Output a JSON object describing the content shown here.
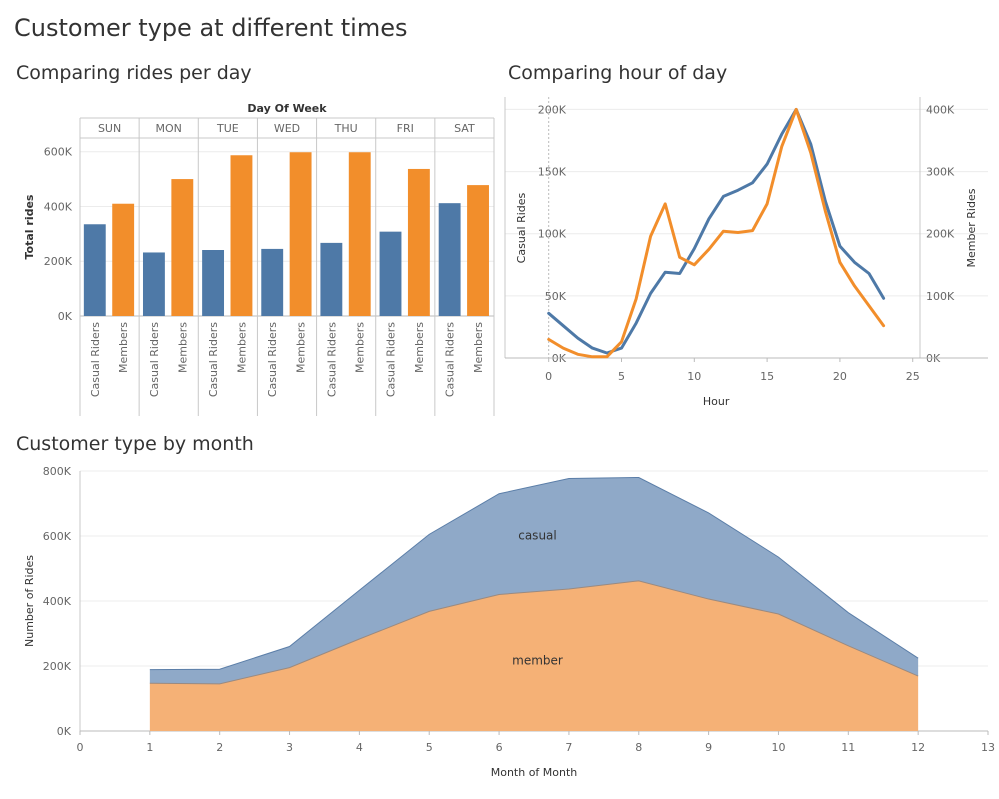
{
  "dashboard": {
    "title": "Customer type at different times"
  },
  "colors": {
    "casual": "#4e79a7",
    "member": "#f28e2b",
    "casual_area": "#8fa9c8",
    "member_area": "#f5b176",
    "grid": "#ececec",
    "axis": "#c8c8c8"
  },
  "chart_data": [
    {
      "id": "rides-per-day",
      "type": "bar",
      "title": "Comparing rides per day",
      "header_label": "Day Of Week",
      "ylabel": "Total rides",
      "ylim": [
        0,
        650000
      ],
      "yticks": [
        0,
        200000,
        400000,
        600000
      ],
      "ytick_labels": [
        "0K",
        "200K",
        "400K",
        "600K"
      ],
      "categories": [
        "SUN",
        "MON",
        "TUE",
        "WED",
        "THU",
        "FRI",
        "SAT"
      ],
      "sub_categories": [
        "Casual Riders",
        "Members"
      ],
      "series": [
        {
          "name": "Casual Riders",
          "values": [
            335000,
            232000,
            241000,
            245000,
            267000,
            308000,
            412000
          ]
        },
        {
          "name": "Members",
          "values": [
            410000,
            500000,
            587000,
            598000,
            598000,
            537000,
            478000
          ]
        }
      ]
    },
    {
      "id": "hour-of-day",
      "type": "line",
      "title": "Comparing hour of day",
      "xlabel": "Hour",
      "ylabel_left": "Casual Rides",
      "ylabel_right": "Member Rides",
      "xlim": [
        -3,
        25.5
      ],
      "xticks": [
        0,
        5,
        10,
        15,
        20,
        25
      ],
      "ylim_left": [
        0,
        210000
      ],
      "yticks_left": [
        0,
        50000,
        100000,
        150000,
        200000
      ],
      "ytick_labels_left": [
        "0K",
        "50K",
        "100K",
        "150K",
        "200K"
      ],
      "ylim_right": [
        0,
        420000
      ],
      "yticks_right": [
        0,
        100000,
        200000,
        300000,
        400000
      ],
      "ytick_labels_right": [
        "0K",
        "100K",
        "200K",
        "300K",
        "400K"
      ],
      "x": [
        0,
        1,
        2,
        3,
        4,
        5,
        6,
        7,
        8,
        9,
        10,
        11,
        12,
        13,
        14,
        15,
        16,
        17,
        18,
        19,
        20,
        21,
        22,
        23
      ],
      "series": [
        {
          "name": "Casual Rides",
          "axis": "left",
          "values": [
            36000,
            26000,
            16000,
            8000,
            4000,
            8000,
            28000,
            52000,
            69000,
            68000,
            88000,
            112000,
            130000,
            135000,
            141000,
            156000,
            180000,
            200000,
            172000,
            126000,
            90000,
            77000,
            68000,
            48000
          ]
        },
        {
          "name": "Member Rides",
          "axis": "right",
          "values": [
            30000,
            16000,
            6000,
            2000,
            2000,
            26000,
            95000,
            196000,
            248000,
            162000,
            150000,
            175000,
            204000,
            202000,
            205000,
            248000,
            340000,
            400000,
            330000,
            236000,
            154000,
            116000,
            84000,
            52000
          ]
        }
      ]
    },
    {
      "id": "customer-by-month",
      "type": "area",
      "title": "Customer type by month",
      "xlabel": "Month of Month",
      "ylabel": "Number of Rides",
      "xlim": [
        0,
        13
      ],
      "xticks": [
        0,
        1,
        2,
        3,
        4,
        5,
        6,
        7,
        8,
        9,
        10,
        11,
        12,
        13
      ],
      "ylim": [
        0,
        800000
      ],
      "yticks": [
        0,
        200000,
        400000,
        600000,
        800000
      ],
      "ytick_labels": [
        "0K",
        "200K",
        "400K",
        "600K",
        "800K"
      ],
      "stacked": true,
      "x": [
        1,
        2,
        3,
        4,
        5,
        6,
        7,
        8,
        9,
        10,
        11,
        12
      ],
      "series": [
        {
          "name": "member",
          "values": [
            147000,
            145000,
            195000,
            283000,
            368000,
            420000,
            437000,
            462000,
            406000,
            360000,
            262000,
            169000
          ]
        },
        {
          "name": "casual",
          "values": [
            42000,
            45000,
            65000,
            150000,
            237000,
            310000,
            340000,
            318000,
            265000,
            175000,
            102000,
            55000
          ]
        }
      ]
    }
  ]
}
